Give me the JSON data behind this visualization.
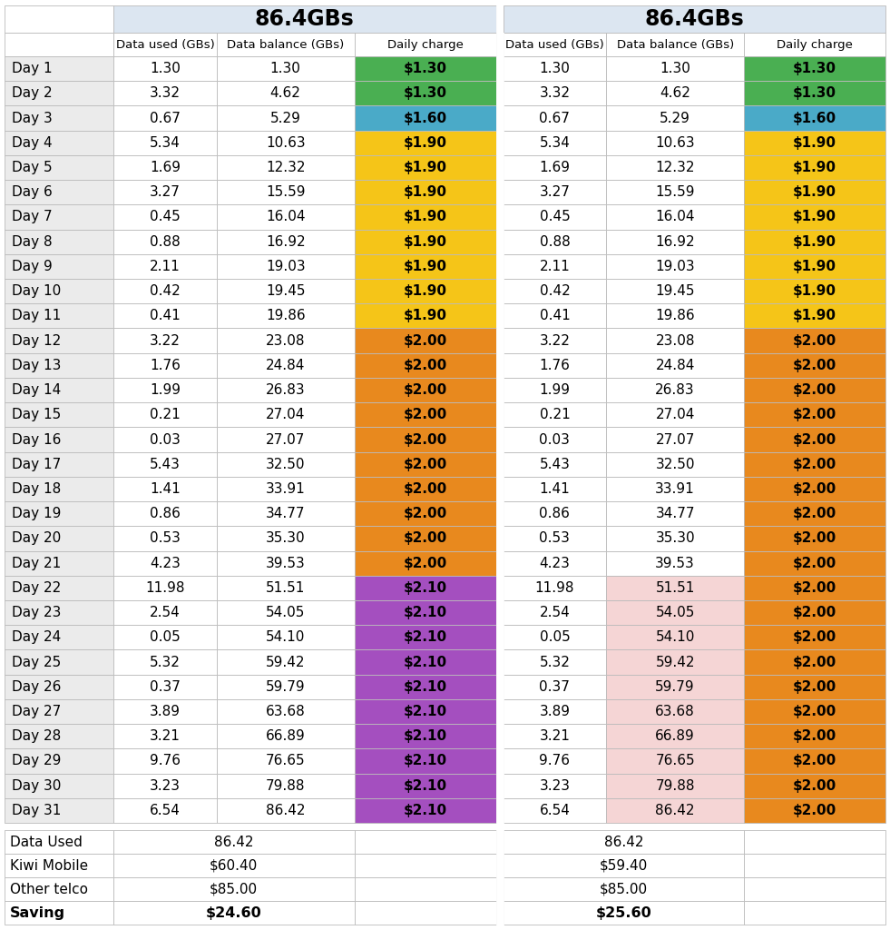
{
  "title_left": "86.4GBs",
  "title_right": "86.4GBs",
  "col_headers": [
    "Data used (GBs)",
    "Data balance (GBs)",
    "Daily charge"
  ],
  "days": [
    "Day 1",
    "Day 2",
    "Day 3",
    "Day 4",
    "Day 5",
    "Day 6",
    "Day 7",
    "Day 8",
    "Day 9",
    "Day 10",
    "Day 11",
    "Day 12",
    "Day 13",
    "Day 14",
    "Day 15",
    "Day 16",
    "Day 17",
    "Day 18",
    "Day 19",
    "Day 20",
    "Day 21",
    "Day 22",
    "Day 23",
    "Day 24",
    "Day 25",
    "Day 26",
    "Day 27",
    "Day 28",
    "Day 29",
    "Day 30",
    "Day 31"
  ],
  "data_used": [
    1.3,
    3.32,
    0.67,
    5.34,
    1.69,
    3.27,
    0.45,
    0.88,
    2.11,
    0.42,
    0.41,
    3.22,
    1.76,
    1.99,
    0.21,
    0.03,
    5.43,
    1.41,
    0.86,
    0.53,
    4.23,
    11.98,
    2.54,
    0.05,
    5.32,
    0.37,
    3.89,
    3.21,
    9.76,
    3.23,
    6.54
  ],
  "data_balance": [
    1.3,
    4.62,
    5.29,
    10.63,
    12.32,
    15.59,
    16.04,
    16.92,
    19.03,
    19.45,
    19.86,
    23.08,
    24.84,
    26.83,
    27.04,
    27.07,
    32.5,
    33.91,
    34.77,
    35.3,
    39.53,
    51.51,
    54.05,
    54.1,
    59.42,
    59.79,
    63.68,
    66.89,
    76.65,
    79.88,
    86.42
  ],
  "daily_charge_left": [
    "$1.30",
    "$1.30",
    "$1.60",
    "$1.90",
    "$1.90",
    "$1.90",
    "$1.90",
    "$1.90",
    "$1.90",
    "$1.90",
    "$1.90",
    "$2.00",
    "$2.00",
    "$2.00",
    "$2.00",
    "$2.00",
    "$2.00",
    "$2.00",
    "$2.00",
    "$2.00",
    "$2.00",
    "$2.10",
    "$2.10",
    "$2.10",
    "$2.10",
    "$2.10",
    "$2.10",
    "$2.10",
    "$2.10",
    "$2.10",
    "$2.10"
  ],
  "daily_charge_right": [
    "$1.30",
    "$1.30",
    "$1.60",
    "$1.90",
    "$1.90",
    "$1.90",
    "$1.90",
    "$1.90",
    "$1.90",
    "$1.90",
    "$1.90",
    "$2.00",
    "$2.00",
    "$2.00",
    "$2.00",
    "$2.00",
    "$2.00",
    "$2.00",
    "$2.00",
    "$2.00",
    "$2.00",
    "$2.00",
    "$2.00",
    "$2.00",
    "$2.00",
    "$2.00",
    "$2.00",
    "$2.00",
    "$2.00",
    "$2.00",
    "$2.00"
  ],
  "charge_bg_left": [
    "#4aaf52",
    "#4aaf52",
    "#4aaac8",
    "#f5c518",
    "#f5c518",
    "#f5c518",
    "#f5c518",
    "#f5c518",
    "#f5c518",
    "#f5c518",
    "#f5c518",
    "#e8891e",
    "#e8891e",
    "#e8891e",
    "#e8891e",
    "#e8891e",
    "#e8891e",
    "#e8891e",
    "#e8891e",
    "#e8891e",
    "#e8891e",
    "#a44fbf",
    "#a44fbf",
    "#a44fbf",
    "#a44fbf",
    "#a44fbf",
    "#a44fbf",
    "#a44fbf",
    "#a44fbf",
    "#a44fbf",
    "#a44fbf"
  ],
  "charge_bg_right": [
    "#4aaf52",
    "#4aaf52",
    "#4aaac8",
    "#f5c518",
    "#f5c518",
    "#f5c518",
    "#f5c518",
    "#f5c518",
    "#f5c518",
    "#f5c518",
    "#f5c518",
    "#e8891e",
    "#e8891e",
    "#e8891e",
    "#e8891e",
    "#e8891e",
    "#e8891e",
    "#e8891e",
    "#e8891e",
    "#e8891e",
    "#e8891e",
    "#e8891e",
    "#e8891e",
    "#e8891e",
    "#e8891e",
    "#e8891e",
    "#e8891e",
    "#e8891e",
    "#e8891e",
    "#e8891e",
    "#e8891e"
  ],
  "right_balance_bg": [
    "#ffffff",
    "#ffffff",
    "#ffffff",
    "#ffffff",
    "#ffffff",
    "#ffffff",
    "#ffffff",
    "#ffffff",
    "#ffffff",
    "#ffffff",
    "#ffffff",
    "#ffffff",
    "#ffffff",
    "#ffffff",
    "#ffffff",
    "#ffffff",
    "#ffffff",
    "#ffffff",
    "#ffffff",
    "#ffffff",
    "#ffffff",
    "#f5d5d5",
    "#f5d5d5",
    "#f5d5d5",
    "#f5d5d5",
    "#f5d5d5",
    "#f5d5d5",
    "#f5d5d5",
    "#f5d5d5",
    "#f5d5d5",
    "#f5d5d5"
  ],
  "summary_rows": [
    {
      "label": "Data Used",
      "left_val": "86.42",
      "right_val": "86.42",
      "bold": false
    },
    {
      "label": "Kiwi Mobile",
      "left_val": "$60.40",
      "right_val": "$59.40",
      "bold": false
    },
    {
      "label": "Other telco",
      "left_val": "$85.00",
      "right_val": "$85.00",
      "bold": false
    },
    {
      "label": "Saving",
      "left_val": "$24.60",
      "right_val": "$25.60",
      "bold": true
    }
  ],
  "header_bg": "#dce6f1",
  "white_bg": "#ffffff",
  "label_bg": "#ebebeb",
  "border_color": "#bbbbbb",
  "title_font_size": 17,
  "header_font_size": 9.5,
  "data_font_size": 11,
  "label_font_size": 11
}
